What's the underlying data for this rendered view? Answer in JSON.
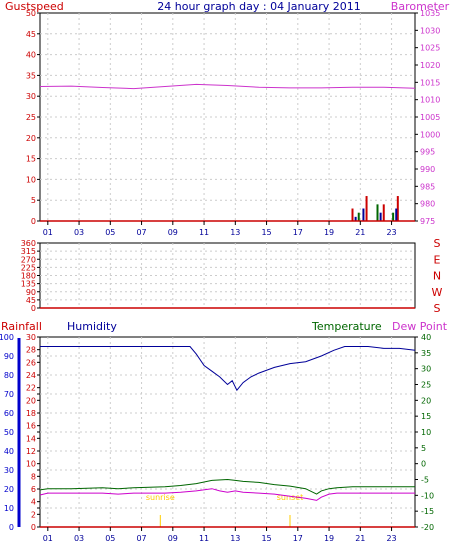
{
  "header": {
    "left": "Gustspeed",
    "center": "24 hour graph day : 04 January 2011",
    "right": "Barometer"
  },
  "bottom_header": {
    "rainfall": "Rainfall",
    "humidity": "Humidity",
    "temperature": "Temperature",
    "dewpoint": "Dew Point"
  },
  "annotations": {
    "sunrise": "sunrise",
    "sunset": "sunset"
  },
  "x_ticks": [
    "01",
    "03",
    "05",
    "07",
    "09",
    "11",
    "13",
    "15",
    "17",
    "19",
    "21",
    "23"
  ],
  "colors": {
    "gust": "#cc0000",
    "pressure": "#cc33cc",
    "humidity": "#000099",
    "temperature": "#006600",
    "dewpoint": "#cc00cc",
    "direction": "#cc0000",
    "sun": "#ffcc00",
    "rain_axis": "#0000cc",
    "grid": "#cccccc"
  },
  "chart_data": [
    {
      "type": "line",
      "ylabel_left": "Gustspeed",
      "ylabel_right": "Barometer",
      "left_ticks": [
        "0",
        "5",
        "10",
        "15",
        "20",
        "25",
        "30",
        "35",
        "40",
        "45",
        "50"
      ],
      "right_ticks": [
        "975",
        "980",
        "985",
        "990",
        "995",
        "1000",
        "1005",
        "1010",
        "1015",
        "1020",
        "1025",
        "1030",
        "1035"
      ],
      "ylim_left": [
        0,
        50
      ],
      "ylim_right": [
        975,
        1035
      ],
      "pressure": {
        "x": [
          0,
          2,
          4,
          6,
          8,
          10,
          12,
          14,
          16,
          18,
          20,
          22,
          24
        ],
        "y": [
          1013.8,
          1013.9,
          1013.5,
          1013.2,
          1013.8,
          1014.4,
          1014.1,
          1013.6,
          1013.4,
          1013.4,
          1013.6,
          1013.6,
          1013.3
        ]
      },
      "gust_bars": {
        "x": [
          20.0,
          20.4,
          20.9,
          21.6,
          22.0,
          22.6,
          22.9
        ],
        "y": [
          3,
          2,
          6,
          4,
          4,
          2,
          6
        ]
      },
      "wind_avg_bars": {
        "x": [
          20.2,
          20.7,
          21.8,
          22.8
        ],
        "y": [
          1,
          3,
          2,
          3
        ]
      }
    },
    {
      "type": "scatter",
      "ylabel_right": [
        "S",
        "E",
        "N",
        "W",
        "S"
      ],
      "left_ticks": [
        "0",
        "45",
        "90",
        "135",
        "180",
        "225",
        "270",
        "315",
        "360"
      ],
      "ylim": [
        0,
        360
      ],
      "direction": {
        "x": [
          0,
          24
        ],
        "y": [
          0,
          0
        ]
      }
    },
    {
      "type": "line",
      "left_ticks_rain": [
        "0",
        "10",
        "20",
        "30",
        "40",
        "50",
        "60",
        "70",
        "80",
        "90",
        "100"
      ],
      "left_ticks_hum": [
        "0",
        "2",
        "4",
        "6",
        "8",
        "10",
        "12",
        "14",
        "16",
        "18",
        "20",
        "22",
        "24",
        "26",
        "28",
        "30"
      ],
      "right_ticks": [
        "-20",
        "-15",
        "-10",
        "-5",
        "0",
        "5",
        "10",
        "15",
        "20",
        "25",
        "30",
        "35",
        "40"
      ],
      "ylim_humidity": [
        0,
        100
      ],
      "ylim_temperature": [
        -20,
        40
      ],
      "humidity": {
        "x": [
          0,
          2,
          4,
          6,
          8,
          9.6,
          10,
          10.5,
          11,
          11.5,
          12,
          12.3,
          12.6,
          13,
          13.5,
          14,
          15,
          16,
          17,
          18,
          18.8,
          19.5,
          21,
          22,
          23,
          24
        ],
        "y": [
          95,
          95,
          95,
          95,
          95,
          95,
          91,
          85,
          82,
          79,
          75,
          77,
          72,
          76,
          79,
          81,
          84,
          86,
          87,
          90,
          93,
          95,
          95,
          94,
          94,
          93
        ]
      },
      "temperature": {
        "x": [
          0,
          0.5,
          2,
          4,
          5,
          6,
          8,
          9,
          10,
          11,
          12,
          12.5,
          13,
          14,
          15,
          16,
          17,
          17.7,
          18,
          18.5,
          19,
          20,
          22,
          24
        ],
        "y": [
          -8.3,
          -7.9,
          -7.9,
          -7.6,
          -7.9,
          -7.6,
          -7.3,
          -6.9,
          -6.3,
          -5.3,
          -5.0,
          -5.3,
          -5.6,
          -5.9,
          -6.6,
          -7.1,
          -7.9,
          -9.6,
          -8.6,
          -7.9,
          -7.6,
          -7.3,
          -7.3,
          -7.3
        ]
      },
      "dewpoint": {
        "x": [
          0,
          0.5,
          2,
          4,
          5,
          6,
          8,
          9,
          10,
          11,
          11.5,
          12,
          12.5,
          13,
          14,
          15,
          16,
          17,
          17.7,
          18,
          18.5,
          19,
          20,
          22,
          24
        ],
        "y": [
          -9.9,
          -9.3,
          -9.3,
          -9.3,
          -9.6,
          -9.3,
          -9.3,
          -9.0,
          -8.6,
          -7.9,
          -8.6,
          -9.0,
          -8.6,
          -9.0,
          -9.3,
          -9.6,
          -10.3,
          -10.9,
          -11.6,
          -10.6,
          -9.6,
          -9.3,
          -9.3,
          -9.3,
          -9.3
        ]
      },
      "rain": {
        "x": [
          0,
          24
        ],
        "y": [
          0,
          0
        ]
      },
      "sun_markers": {
        "x": [
          7.7,
          16.0
        ]
      }
    }
  ]
}
